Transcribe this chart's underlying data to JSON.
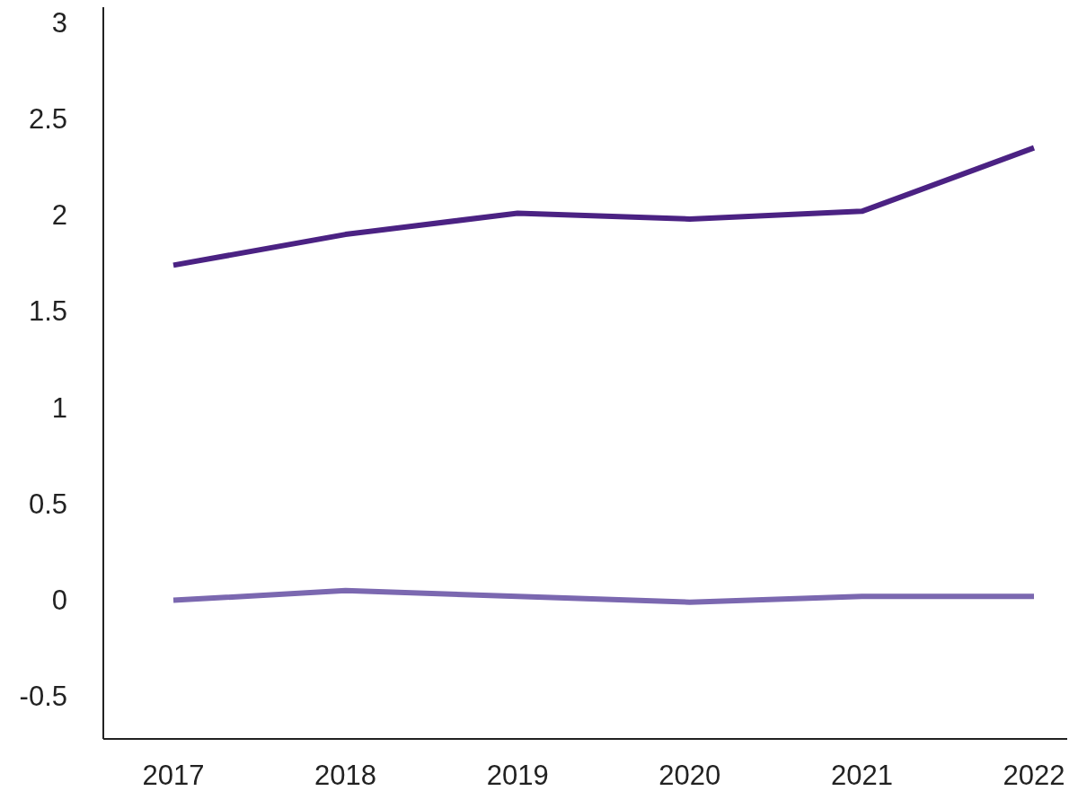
{
  "chart_data": {
    "type": "line",
    "categories": [
      "2017",
      "2018",
      "2019",
      "2020",
      "2021",
      "2022"
    ],
    "series": [
      {
        "color": "#4b2283",
        "values": [
          1.74,
          1.9,
          2.01,
          1.98,
          2.02,
          2.35
        ]
      },
      {
        "color": "#7b68b0",
        "values": [
          0,
          0.05,
          0.02,
          -0.01,
          0.02,
          0.02
        ]
      }
    ],
    "ylim": [
      -0.72,
      3.08
    ],
    "yticks": [
      -0.5,
      0,
      0.5,
      1,
      1.5,
      2,
      2.5,
      3
    ],
    "grid": false,
    "line_style": "solid"
  }
}
